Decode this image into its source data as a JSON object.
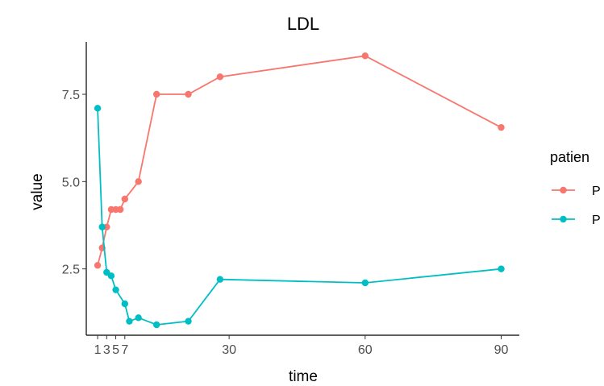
{
  "chart_data": {
    "type": "line",
    "title": "LDL",
    "xlabel": "time",
    "ylabel": "value",
    "xlim": [
      -1.5,
      94
    ],
    "ylim": [
      0.6,
      9.0
    ],
    "x_ticks": [
      1,
      3,
      5,
      7,
      30,
      60,
      90
    ],
    "x_tick_labels": [
      "1",
      "3",
      "5",
      "7",
      "30",
      "60",
      "90"
    ],
    "y_ticks": [
      2.5,
      5.0,
      7.5
    ],
    "y_tick_labels": [
      "2.5",
      "5.0",
      "7.5"
    ],
    "grid": false,
    "legend": {
      "title": "patien",
      "position": "right"
    },
    "series": [
      {
        "name": "P",
        "color": "#F8766D",
        "points": [
          {
            "x": 1,
            "y": 2.6
          },
          {
            "x": 2,
            "y": 3.1
          },
          {
            "x": 3,
            "y": 3.7
          },
          {
            "x": 4,
            "y": 4.2
          },
          {
            "x": 5,
            "y": 4.2
          },
          {
            "x": 6,
            "y": 4.2
          },
          {
            "x": 7,
            "y": 4.5
          },
          {
            "x": 10,
            "y": 5.0
          },
          {
            "x": 14,
            "y": 7.5
          },
          {
            "x": 21,
            "y": 7.5
          },
          {
            "x": 28,
            "y": 8.0
          },
          {
            "x": 60,
            "y": 8.6
          },
          {
            "x": 90,
            "y": 6.55
          }
        ]
      },
      {
        "name": "P",
        "color": "#00BFC4",
        "points": [
          {
            "x": 1,
            "y": 7.1
          },
          {
            "x": 2,
            "y": 3.7
          },
          {
            "x": 3,
            "y": 2.4
          },
          {
            "x": 4,
            "y": 2.3
          },
          {
            "x": 5,
            "y": 1.9
          },
          {
            "x": 7,
            "y": 1.5
          },
          {
            "x": 8,
            "y": 1.0
          },
          {
            "x": 10,
            "y": 1.1
          },
          {
            "x": 14,
            "y": 0.9
          },
          {
            "x": 21,
            "y": 1.0
          },
          {
            "x": 28,
            "y": 2.2
          },
          {
            "x": 60,
            "y": 2.1
          },
          {
            "x": 90,
            "y": 2.5
          }
        ]
      }
    ]
  }
}
